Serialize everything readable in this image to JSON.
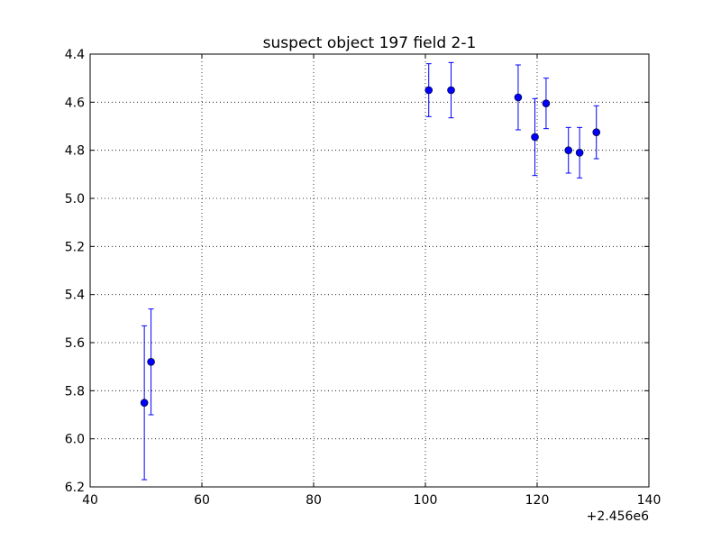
{
  "chart_data": {
    "type": "scatter",
    "title": "suspect object 197 field 2-1",
    "xlabel": "",
    "ylabel": "",
    "x_offset_label": "+2.456e6",
    "xlim": [
      40,
      140
    ],
    "ylim": [
      6.2,
      4.4
    ],
    "y_inverted": true,
    "grid": true,
    "x_ticks": [
      40,
      60,
      80,
      100,
      120,
      140
    ],
    "x_tick_labels": [
      "40",
      "60",
      "80",
      "100",
      "120",
      "140"
    ],
    "y_ticks": [
      4.4,
      4.6,
      4.8,
      5.0,
      5.2,
      5.4,
      5.6,
      5.8,
      6.0,
      6.2
    ],
    "y_tick_labels": [
      "4.4",
      "4.6",
      "4.8",
      "5.0",
      "5.2",
      "5.4",
      "5.6",
      "5.8",
      "6.0",
      "6.2"
    ],
    "marker_color": "#0000ff",
    "series": [
      {
        "points": [
          {
            "x": 49.7,
            "y": 5.85,
            "err": 0.32
          },
          {
            "x": 50.9,
            "y": 5.68,
            "err": 0.22
          },
          {
            "x": 100.6,
            "y": 4.55,
            "err": 0.11
          },
          {
            "x": 104.6,
            "y": 4.55,
            "err": 0.115
          },
          {
            "x": 116.6,
            "y": 4.58,
            "err": 0.135
          },
          {
            "x": 119.6,
            "y": 4.745,
            "err": 0.16
          },
          {
            "x": 121.6,
            "y": 4.605,
            "err": 0.105
          },
          {
            "x": 125.6,
            "y": 4.8,
            "err": 0.095
          },
          {
            "x": 127.6,
            "y": 4.81,
            "err": 0.105
          },
          {
            "x": 130.6,
            "y": 4.725,
            "err": 0.11
          }
        ]
      }
    ]
  }
}
